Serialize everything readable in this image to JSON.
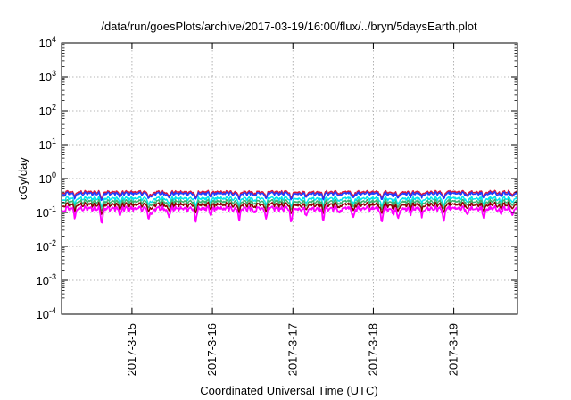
{
  "chart_data": {
    "type": "line",
    "title": "/data/run/goesPlots/archive/2017-03-19/16:00/flux/../bryn/5daysEarth.plot",
    "xlabel": "Coordinated Universal Time (UTC)",
    "ylabel": "cGy/day",
    "yscale": "log",
    "ylim": [
      0.0001,
      10000
    ],
    "xlim": [
      "2017-03-14 03:00",
      "2017-03-19 19:00"
    ],
    "grid": true,
    "legend": "none",
    "y_ticks": [
      {
        "value": 0.0001,
        "base": "10",
        "exp": "-4"
      },
      {
        "value": 0.001,
        "base": "10",
        "exp": "-3"
      },
      {
        "value": 0.01,
        "base": "10",
        "exp": "-2"
      },
      {
        "value": 0.1,
        "base": "10",
        "exp": "-1"
      },
      {
        "value": 1,
        "base": "10",
        "exp": "0"
      },
      {
        "value": 10,
        "base": "10",
        "exp": "1"
      },
      {
        "value": 100,
        "base": "10",
        "exp": "2"
      },
      {
        "value": 1000,
        "base": "10",
        "exp": "3"
      },
      {
        "value": 10000,
        "base": "10",
        "exp": "4"
      }
    ],
    "x_ticks": [
      {
        "value": "2017-03-15 00:00",
        "label": "2017-3-15"
      },
      {
        "value": "2017-03-16 00:00",
        "label": "2017-3-16"
      },
      {
        "value": "2017-03-17 00:00",
        "label": "2017-3-17"
      },
      {
        "value": "2017-03-18 00:00",
        "label": "2017-3-18"
      },
      {
        "value": "2017-03-19 00:00",
        "label": "2017-3-19"
      }
    ],
    "series": [
      {
        "color": "#dc143c",
        "base": 0.4,
        "dips": 0.55
      },
      {
        "color": "#1e3cff",
        "base": 0.36,
        "dips": 0.55
      },
      {
        "color": "#00e5ee",
        "base": 0.26,
        "dips": 0.7
      },
      {
        "color": "#3cb371",
        "base": 0.21,
        "dips": 0.7
      },
      {
        "color": "#8b0000",
        "base": 0.17,
        "dips": 0.75
      },
      {
        "color": "#ff00ff",
        "base": 0.13,
        "dips": 1.0
      }
    ],
    "dip_times": [
      "2017-03-14 03:30",
      "2017-03-14 07:00",
      "2017-03-14 15:00",
      "2017-03-14 20:30",
      "2017-03-15 05:00",
      "2017-03-15 06:00",
      "2017-03-15 11:00",
      "2017-03-15 19:00",
      "2017-03-15 23:30",
      "2017-03-16 08:00",
      "2017-03-16 12:30",
      "2017-03-16 16:00",
      "2017-03-16 23:30",
      "2017-03-17 04:00",
      "2017-03-17 09:00",
      "2017-03-17 14:00",
      "2017-03-17 18:00",
      "2017-03-18 02:30",
      "2017-03-18 06:00",
      "2017-03-18 07:30",
      "2017-03-18 11:00",
      "2017-03-18 14:30",
      "2017-03-18 21:00",
      "2017-03-19 04:00",
      "2017-03-19 09:00",
      "2017-03-19 14:00",
      "2017-03-19 17:30"
    ]
  }
}
